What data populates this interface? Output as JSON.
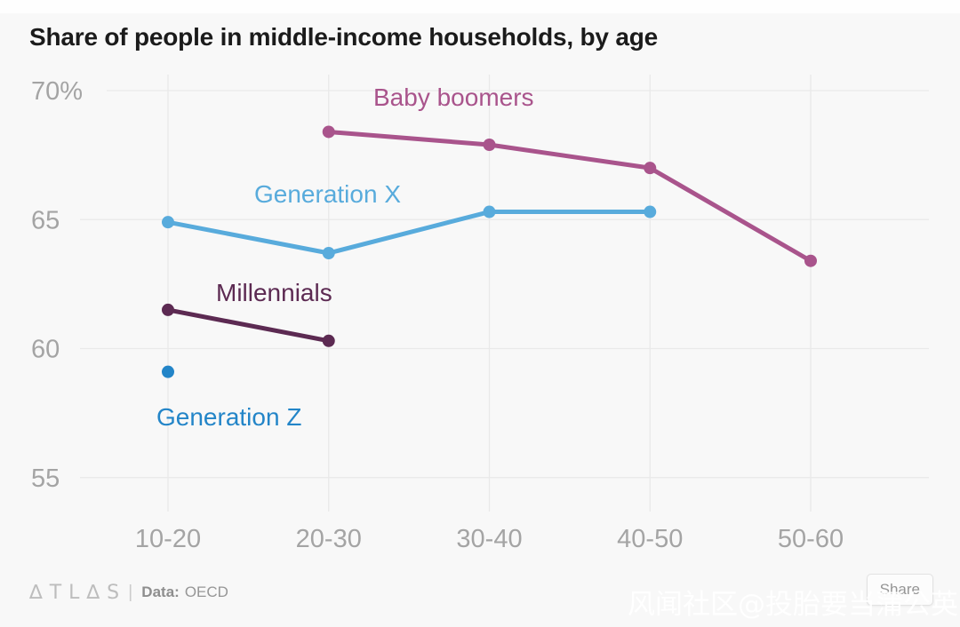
{
  "page": {
    "title": "Share of people in middle-income households, by age"
  },
  "chart_data": {
    "type": "line",
    "title": "Share of people in middle-income households, by age",
    "xlabel": "",
    "ylabel": "",
    "categories": [
      "10-20",
      "20-30",
      "30-40",
      "40-50",
      "50-60"
    ],
    "y_ticks": [
      {
        "label": "70%",
        "value": 70
      },
      {
        "label": "65",
        "value": 65
      },
      {
        "label": "60",
        "value": 60
      },
      {
        "label": "55",
        "value": 55
      }
    ],
    "ylim": [
      54,
      71
    ],
    "grid": true,
    "legend_position": "inline-labels-on-chart",
    "axis_text_color": "#a4a4a4",
    "gridline_color": "#e9e9e9",
    "series": [
      {
        "name": "Baby boomers",
        "color": "#a9548c",
        "start_index": 1,
        "values": [
          68.4,
          67.9,
          67.0,
          63.4
        ]
      },
      {
        "name": "Generation X",
        "color": "#58abdc",
        "start_index": 0,
        "values": [
          64.9,
          63.7,
          65.3,
          65.3
        ]
      },
      {
        "name": "Millennials",
        "color": "#5c2a52",
        "start_index": 0,
        "values": [
          61.5,
          60.3
        ]
      },
      {
        "name": "Generation Z",
        "color": "#2385c8",
        "start_index": 0,
        "values": [
          59.1
        ]
      }
    ]
  },
  "footer": {
    "logo_text": "∆TL∆S",
    "divider": "|",
    "data_label": "Data:",
    "data_value": "OECD"
  },
  "share_button": {
    "label": "Share"
  },
  "watermark": {
    "text": "风闻社区@投胎要当蒲公英"
  }
}
